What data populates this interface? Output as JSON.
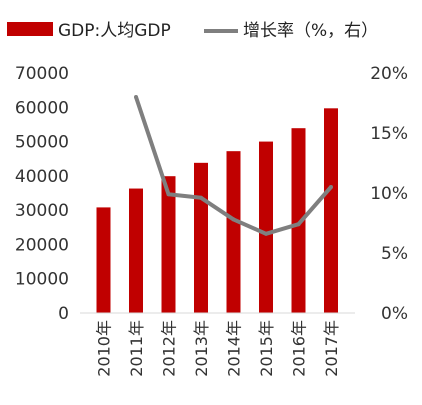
{
  "chart_data": {
    "type": "bar",
    "categories": [
      "2010年",
      "2011年",
      "2012年",
      "2013年",
      "2014年",
      "2015年",
      "2016年",
      "2017年"
    ],
    "series": [
      {
        "name": "GDP:人均GDP",
        "type": "bar",
        "axis": "left",
        "values": [
          30800,
          36300,
          39900,
          43800,
          47200,
          50000,
          53900,
          59700
        ],
        "color": "#c00000"
      },
      {
        "name": "增长率（%，右）",
        "type": "line",
        "axis": "right",
        "values": [
          null,
          18.0,
          9.9,
          9.6,
          7.8,
          6.6,
          7.4,
          10.5
        ],
        "color": "#7f7f7f"
      }
    ],
    "y_left": {
      "ylim": [
        0,
        70000
      ],
      "ticks": [
        "0",
        "10000",
        "20000",
        "30000",
        "40000",
        "50000",
        "60000",
        "70000"
      ]
    },
    "y_right": {
      "ylim": [
        0,
        20
      ],
      "ticks": [
        "0%",
        "5%",
        "10%",
        "15%",
        "20%"
      ]
    },
    "grid": false,
    "legend_position": "top"
  }
}
